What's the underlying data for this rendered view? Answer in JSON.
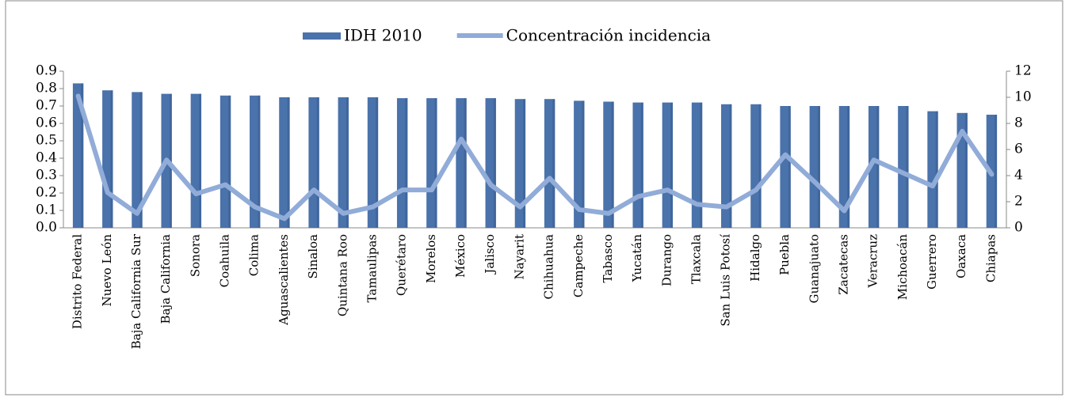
{
  "chart_data": {
    "type": "bar_line",
    "categories": [
      "Distrito Federal",
      "Nuevo León",
      "Baja California Sur",
      "Baja California",
      "Sonora",
      "Coahuila",
      "Colima",
      "Aguascalientes",
      "Sinaloa",
      "Quintana Roo",
      "Tamaulipas",
      "Querétaro",
      "Morelos",
      "México",
      "Jalisco",
      "Nayarit",
      "Chihuahua",
      "Campeche",
      "Tabasco",
      "Yucatán",
      "Durango",
      "Tlaxcala",
      "San Luis Potosí",
      "Hidalgo",
      "Puebla",
      "Guanajuato",
      "Zacatecas",
      "Veracruz",
      "Michoacán",
      "Guerrero",
      "Oaxaca",
      "Chiapas"
    ],
    "series": [
      {
        "name": "IDH 2010",
        "type": "bar",
        "color": "#4a72ab",
        "axis": "y",
        "values": [
          0.83,
          0.79,
          0.78,
          0.77,
          0.77,
          0.76,
          0.76,
          0.75,
          0.75,
          0.75,
          0.75,
          0.745,
          0.745,
          0.745,
          0.745,
          0.74,
          0.74,
          0.73,
          0.725,
          0.72,
          0.72,
          0.72,
          0.71,
          0.71,
          0.7,
          0.7,
          0.7,
          0.7,
          0.7,
          0.67,
          0.66,
          0.65
        ]
      },
      {
        "name": "Concentración incidencia",
        "type": "line",
        "color": "#91acd8",
        "axis": "y2",
        "values": [
          10.1,
          2.7,
          1.1,
          5.2,
          2.6,
          3.3,
          1.6,
          0.7,
          2.9,
          1.1,
          1.6,
          2.9,
          2.9,
          6.8,
          3.3,
          1.6,
          3.8,
          1.4,
          1.1,
          2.4,
          2.9,
          1.8,
          1.6,
          2.9,
          5.6,
          3.5,
          1.3,
          5.2,
          4.2,
          3.2,
          7.4,
          4.1
        ]
      }
    ],
    "ylim": [
      0,
      0.9
    ],
    "yticks": [
      {
        "value": 0,
        "label": "0.0"
      },
      0.1,
      0.2,
      0.3,
      0.4,
      0.5,
      0.6,
      0.7,
      0.8,
      0.9
    ],
    "y2lim": [
      0,
      12
    ],
    "y2ticks": [
      0,
      2,
      4,
      6,
      8,
      10,
      12
    ],
    "legend": "top"
  }
}
